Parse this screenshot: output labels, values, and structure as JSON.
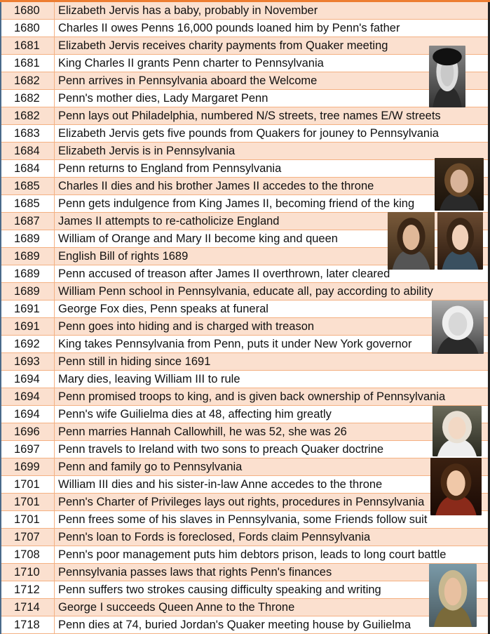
{
  "rows": [
    {
      "year": "1680",
      "event": "Elizabeth Jervis has a baby, probably in November"
    },
    {
      "year": "1680",
      "event": "Charles II owes Penns 16,000 pounds loaned him by Penn's father"
    },
    {
      "year": "1681",
      "event": "Elizabeth Jervis receives charity payments from Quaker meeting"
    },
    {
      "year": "1681",
      "event": "King Charles II grants Penn charter to Pennsylvania"
    },
    {
      "year": "1682",
      "event": "Penn arrives in Pennsylvania aboard the Welcome"
    },
    {
      "year": "1682",
      "event": "Penn's mother dies, Lady Margaret Penn"
    },
    {
      "year": "1682",
      "event": "Penn lays out Philadelphia, numbered N/S streets, tree names E/W streets"
    },
    {
      "year": "1683",
      "event": "Elizabeth Jervis gets five pounds from Quakers for jouney to Pennsylvania"
    },
    {
      "year": "1684",
      "event": "Elizabeth Jervis is in Pennsylvania"
    },
    {
      "year": "1684",
      "event": "Penn returns to England from Pennsylvania"
    },
    {
      "year": "1685",
      "event": "Charles II dies and his brother James II accedes to the throne"
    },
    {
      "year": "1685",
      "event": "Penn gets indulgence from King James II, becoming friend of the king"
    },
    {
      "year": "1687",
      "event": "James II attempts to re-catholicize England"
    },
    {
      "year": "1689",
      "event": "William of Orange and Mary II become king and queen"
    },
    {
      "year": "1689",
      "event": "English Bill of rights 1689"
    },
    {
      "year": "1689",
      "event": "Penn accused of treason after James II overthrown, later cleared"
    },
    {
      "year": "1689",
      "event": "William Penn school in Pennsylvania, educate all, pay according to ability"
    },
    {
      "year": "1691",
      "event": "George Fox dies, Penn speaks at funeral"
    },
    {
      "year": "1691",
      "event": "Penn goes into hiding and is charged with treason"
    },
    {
      "year": "1692",
      "event": "King takes Pennsylvania from Penn, puts it under New York governor"
    },
    {
      "year": "1693",
      "event": "Penn still in hiding since 1691"
    },
    {
      "year": "1694",
      "event": "Mary dies, leaving William III to rule"
    },
    {
      "year": "1694",
      "event": "Penn promised troops to king, and is given back ownership of Pennsylvania"
    },
    {
      "year": "1694",
      "event": "Penn's wife Guilielma dies at 48, affecting him greatly"
    },
    {
      "year": "1696",
      "event": "Penn marries Hannah Callowhill, he was 52, she was 26"
    },
    {
      "year": "1697",
      "event": "Penn travels to Ireland with two sons to preach Quaker doctrine"
    },
    {
      "year": "1699",
      "event": "Penn and family go to Pennsylvania"
    },
    {
      "year": "1701",
      "event": "William III dies and his sister-in-law Anne accedes to the throne"
    },
    {
      "year": "1701",
      "event": "Penn's Charter of Privileges lays out rights, procedures in Pennsylvania"
    },
    {
      "year": "1701",
      "event": "Penn frees some of his slaves in Pennsylvania, some Friends follow suit"
    },
    {
      "year": "1707",
      "event": "Penn's loan to Fords is foreclosed, Fords claim Pennsylvania"
    },
    {
      "year": "1708",
      "event": "Penn's poor management puts him debtors prison, leads to long court battle"
    },
    {
      "year": "1710",
      "event": "Pennsylvania passes laws that rights Penn's finances"
    },
    {
      "year": "1712",
      "event": "Penn suffers two strokes causing difficulty speaking and writing"
    },
    {
      "year": "1714",
      "event": "George I succeeds Queen Anne to the Throne"
    },
    {
      "year": "1718",
      "event": "Penn dies at 74, buried Jordan's Quaker meeting house by Guilielma"
    }
  ],
  "colors": {
    "band": "#fbe0cf",
    "border": "#f4b183",
    "header_accent": "#ed7d31"
  },
  "portraits": [
    "william-penn",
    "james-ii",
    "william-iii",
    "mary-ii",
    "george-fox",
    "hannah-callowhill",
    "queen-anne",
    "george-i"
  ]
}
